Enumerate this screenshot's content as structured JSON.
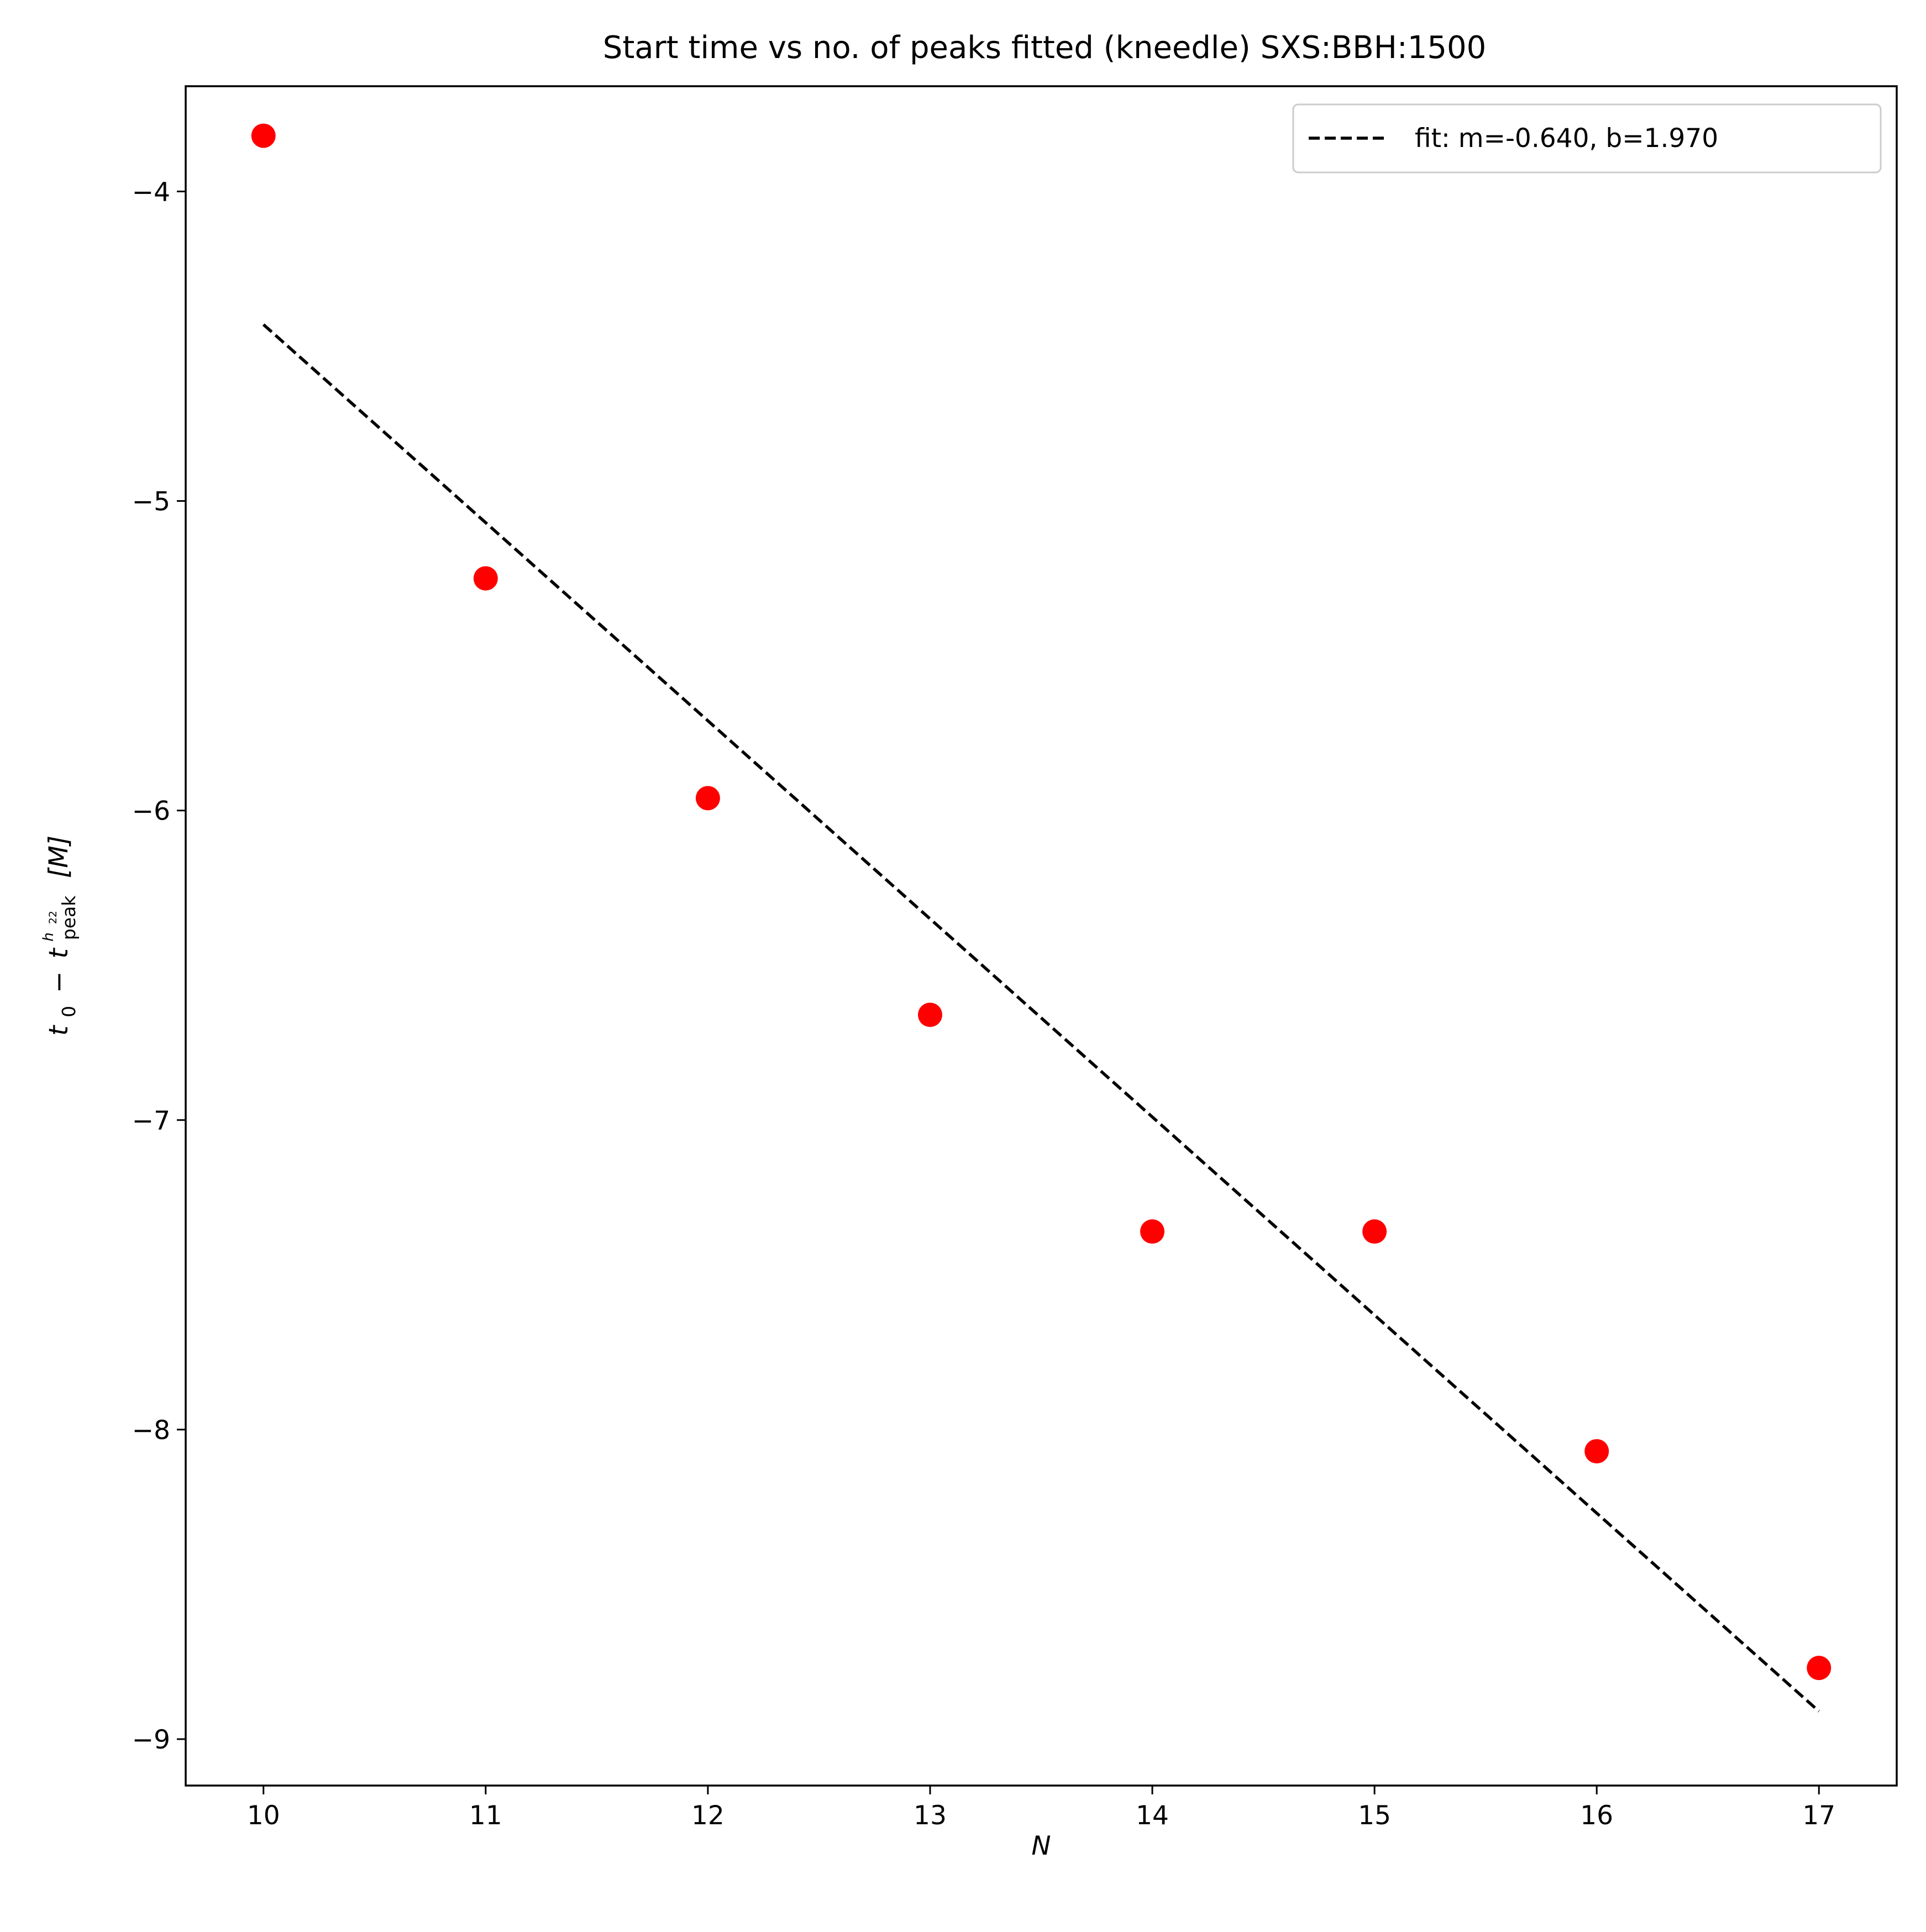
{
  "chart_data": {
    "type": "scatter",
    "title": "Start time vs no. of peaks fitted (kneedle) SXS:BBH:1500",
    "xlabel": "N",
    "ylabel": {
      "main": "t",
      "sub0": "0",
      "minus": "−",
      "t2": "t",
      "sub_peak": "peak",
      "sup": "h",
      "sup_sub": "22",
      "unit": "[M]"
    },
    "xlim": [
      9.65,
      17.35
    ],
    "ylim": [
      -9.15,
      -3.66
    ],
    "x_ticks": [
      10,
      11,
      12,
      13,
      14,
      15,
      16,
      17
    ],
    "y_ticks": [
      -4,
      -5,
      -6,
      -7,
      -8,
      -9
    ],
    "x_tick_labels": [
      "10",
      "11",
      "12",
      "13",
      "14",
      "15",
      "16",
      "17"
    ],
    "y_tick_labels": [
      "−4",
      "−5",
      "−6",
      "−7",
      "−8",
      "−9"
    ],
    "series": [
      {
        "kind": "scatter",
        "color": "#ff0000",
        "x": [
          10,
          11,
          12,
          13,
          14,
          15,
          16,
          17
        ],
        "y": [
          -3.82,
          -5.25,
          -5.96,
          -6.66,
          -7.36,
          -7.36,
          -8.07,
          -8.77
        ]
      },
      {
        "name": "fit: m=-0.640, b=1.970",
        "kind": "line",
        "style": "dashed",
        "color": "#000000",
        "x": [
          10,
          17
        ],
        "y": [
          -4.43,
          -8.91
        ]
      }
    ],
    "legend": {
      "position": "top-right",
      "label": "fit: m=-0.640, b=1.970"
    },
    "grid": false
  }
}
